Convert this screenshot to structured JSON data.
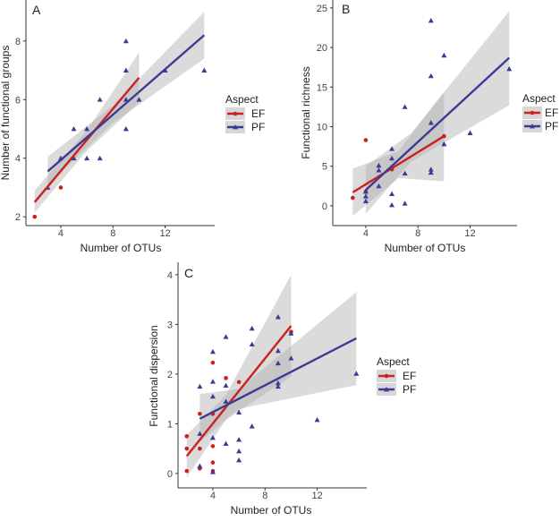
{
  "colors": {
    "EF": "#cc2020",
    "PF": "#3b3b96",
    "band": "#b0b0b0"
  },
  "chart_data": [
    {
      "type": "scatter",
      "panel": "A",
      "xlabel": "Number of OTUs",
      "ylabel": "Number of functional groups",
      "xlim": [
        1.33,
        15.8
      ],
      "ylim": [
        1.7,
        9.4
      ],
      "xticks": [
        4,
        8,
        12
      ],
      "yticks": [
        2,
        4,
        6,
        8
      ],
      "legend": {
        "title": "Aspect",
        "entries": [
          "EF",
          "PF"
        ],
        "placement": "right"
      },
      "series": [
        {
          "name": "EF",
          "points": [
            [
              2,
              2
            ],
            [
              4,
              3
            ]
          ],
          "fit": [
            [
              2,
              2.5
            ],
            [
              10,
              6.75
            ]
          ],
          "ci": {
            "x": [
              2,
              6,
              10
            ],
            "lower": [
              2.15,
              4.25,
              5.9
            ],
            "upper": [
              2.9,
              4.95,
              7.6
            ]
          }
        },
        {
          "name": "PF",
          "points": [
            [
              3,
              3
            ],
            [
              4,
              4
            ],
            [
              5,
              5
            ],
            [
              5,
              4
            ],
            [
              6,
              5
            ],
            [
              6,
              4
            ],
            [
              7,
              6
            ],
            [
              7,
              4
            ],
            [
              9,
              8
            ],
            [
              9,
              7
            ],
            [
              9,
              6
            ],
            [
              9,
              5
            ],
            [
              10,
              6
            ],
            [
              12,
              7
            ],
            [
              15,
              7
            ]
          ],
          "fit": [
            [
              3,
              3.55
            ],
            [
              15,
              8.2
            ]
          ],
          "ci": {
            "x": [
              3,
              8,
              15
            ],
            "lower": [
              3.1,
              5.2,
              7.4
            ],
            "upper": [
              4.05,
              5.8,
              9.0
            ]
          }
        }
      ]
    },
    {
      "type": "scatter",
      "panel": "B",
      "xlabel": "Number of OTUs",
      "ylabel": "Functional richness",
      "xlim": [
        1.47,
        15.6
      ],
      "ylim": [
        -2.5,
        26
      ],
      "xticks": [
        4,
        8,
        12
      ],
      "yticks": [
        0,
        5,
        10,
        15,
        20,
        25
      ],
      "legend": {
        "title": "Aspect",
        "entries": [
          "EF",
          "PF"
        ],
        "placement": "right"
      },
      "series": [
        {
          "name": "EF",
          "points": [
            [
              3,
              1
            ],
            [
              4,
              8.3
            ],
            [
              4,
              1.8
            ],
            [
              6,
              4.6
            ],
            [
              10,
              8.8
            ]
          ],
          "fit": [
            [
              3,
              1.7
            ],
            [
              10,
              8.8
            ]
          ],
          "ci": {
            "x": [
              3,
              6.5,
              10
            ],
            "lower": [
              -1.3,
              3.5,
              3.1
            ],
            "upper": [
              4.7,
              6.9,
              14.4
            ]
          }
        },
        {
          "name": "PF",
          "points": [
            [
              4,
              1.8
            ],
            [
              4,
              1.2
            ],
            [
              4,
              0.6
            ],
            [
              5,
              5.1
            ],
            [
              5,
              4.5
            ],
            [
              5,
              2.5
            ],
            [
              6,
              7.2
            ],
            [
              6,
              6
            ],
            [
              6,
              1.5
            ],
            [
              6,
              0.1
            ],
            [
              7,
              12.5
            ],
            [
              7,
              4.1
            ],
            [
              7,
              0.3
            ],
            [
              9,
              23.4
            ],
            [
              9,
              16.4
            ],
            [
              9,
              10.5
            ],
            [
              9,
              4.6
            ],
            [
              9,
              4.2
            ],
            [
              10,
              19
            ],
            [
              10,
              7.8
            ],
            [
              12,
              9.2
            ],
            [
              15,
              17.3
            ]
          ],
          "fit": [
            [
              4,
              2
            ],
            [
              15,
              18.7
            ]
          ],
          "ci": {
            "x": [
              4,
              7.5,
              15
            ],
            "lower": [
              -1,
              5.6,
              12.7
            ],
            "upper": [
              5,
              9.2,
              24.6
            ]
          }
        }
      ]
    },
    {
      "type": "scatter",
      "panel": "C",
      "xlabel": "Number of OTUs",
      "ylabel": "Functional dispersion",
      "xlim": [
        1.33,
        15.8
      ],
      "ylim": [
        -0.29,
        4.25
      ],
      "xticks": [
        4,
        8,
        12
      ],
      "yticks": [
        0,
        1,
        2,
        3,
        4
      ],
      "legend": {
        "title": "Aspect",
        "entries": [
          "EF",
          "PF"
        ],
        "placement": "right"
      },
      "series": [
        {
          "name": "EF",
          "points": [
            [
              2,
              0.75
            ],
            [
              2,
              0.5
            ],
            [
              2,
              0.05
            ],
            [
              3,
              1.2
            ],
            [
              3,
              0.5
            ],
            [
              3,
              0.1
            ],
            [
              4,
              2.23
            ],
            [
              4,
              1.2
            ],
            [
              4,
              0.55
            ],
            [
              4,
              0.22
            ],
            [
              4,
              0.05
            ],
            [
              5,
              1.92
            ],
            [
              6,
              1.84
            ],
            [
              10,
              2.85
            ]
          ],
          "fit": [
            [
              2,
              0.35
            ],
            [
              10,
              2.97
            ]
          ],
          "ci": {
            "x": [
              2,
              5,
              10
            ],
            "lower": [
              -0.08,
              1.08,
              1.95
            ],
            "upper": [
              0.77,
              1.58,
              4.0
            ]
          }
        },
        {
          "name": "PF",
          "points": [
            [
              3,
              1.75
            ],
            [
              3,
              0.8
            ],
            [
              3,
              0.15
            ],
            [
              4,
              2.45
            ],
            [
              4,
              1.85
            ],
            [
              4,
              1.55
            ],
            [
              4,
              0.72
            ],
            [
              4,
              0.03
            ],
            [
              5,
              2.75
            ],
            [
              5,
              1.77
            ],
            [
              5,
              1.45
            ],
            [
              5,
              0.6
            ],
            [
              6,
              1.23
            ],
            [
              6,
              0.68
            ],
            [
              6,
              0.45
            ],
            [
              6,
              0.27
            ],
            [
              7,
              2.92
            ],
            [
              7,
              2.6
            ],
            [
              7,
              0.95
            ],
            [
              9,
              3.15
            ],
            [
              9,
              2.47
            ],
            [
              9,
              2.22
            ],
            [
              9,
              1.82
            ],
            [
              9,
              1.75
            ],
            [
              10,
              2.82
            ],
            [
              10,
              2.32
            ],
            [
              12,
              1.08
            ],
            [
              15,
              2.01
            ]
          ],
          "fit": [
            [
              3,
              1.1
            ],
            [
              15,
              2.72
            ]
          ],
          "ci": {
            "x": [
              3,
              6,
              15
            ],
            "lower": [
              0.63,
              1.3,
              1.78
            ],
            "upper": [
              1.6,
              1.7,
              3.65
            ]
          }
        }
      ]
    }
  ]
}
